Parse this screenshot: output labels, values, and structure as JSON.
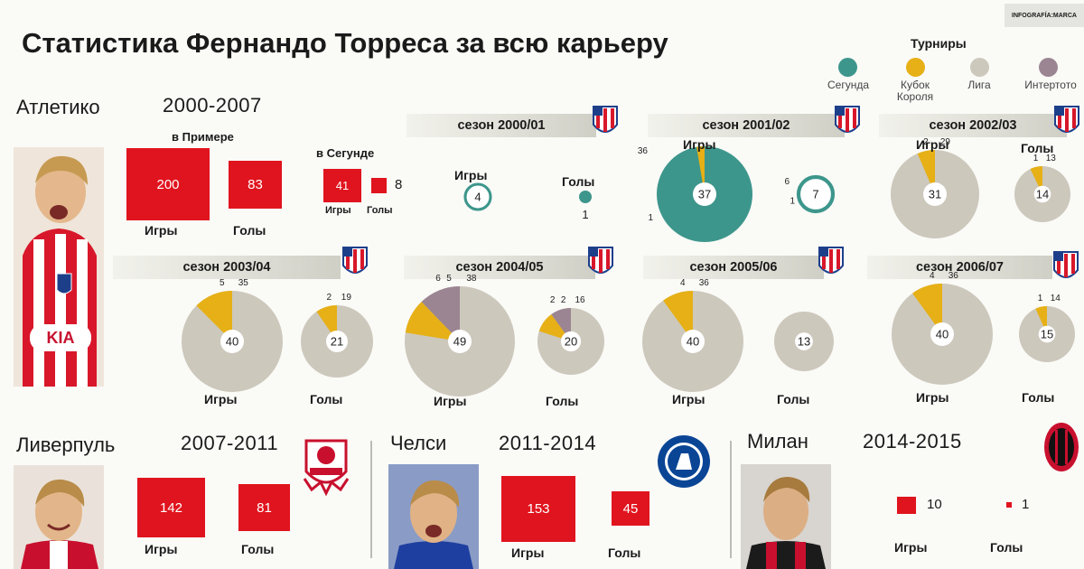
{
  "header": {
    "title": "Статистика Фернандо Торреса за всю карьеру",
    "credit": "INFOGRAFÍA:MARCA"
  },
  "legend": {
    "title": "Турниры",
    "items": [
      {
        "label": "Сегунда",
        "color": "#3d968c"
      },
      {
        "label": "Кубок Короля",
        "color": "#e6b016"
      },
      {
        "label": "Лига",
        "color": "#cdc8bc"
      },
      {
        "label": "Интертото",
        "color": "#9b8592"
      }
    ]
  },
  "atletico": {
    "club": "Атлетико",
    "years": "2000-2007",
    "primera_label": "в Примере",
    "primera_games": "200",
    "primera_goals": "83",
    "segunda_label": "в Сегунде",
    "segunda_games": "41",
    "segunda_goals": "8",
    "games_label": "Игры",
    "goals_label": "Голы"
  },
  "liverpool": {
    "club": "Ливерпуль",
    "years": "2007-2011",
    "games": "142",
    "goals": "81",
    "games_label": "Игры",
    "goals_label": "Голы"
  },
  "chelsea": {
    "club": "Челси",
    "years": "2011-2014",
    "games": "153",
    "goals": "45",
    "games_label": "Игры",
    "goals_label": "Голы"
  },
  "milan": {
    "club": "Милан",
    "years": "2014-2015",
    "games": "10",
    "goals": "1",
    "games_label": "Игры",
    "goals_label": "Голы"
  },
  "chart_data": {
    "type": "pie",
    "colors": {
      "segunda": "#3d968c",
      "copa": "#e6b016",
      "liga": "#cdc8bc",
      "intertoto": "#9b8592"
    },
    "seasons": [
      {
        "label": "сезон 2000/01",
        "games": {
          "total": 4,
          "segunda": 4
        },
        "goals": {
          "total": 1,
          "segunda": 1
        },
        "games_label": "Игры",
        "goals_label": "Голы"
      },
      {
        "label": "сезон 2001/02",
        "games": {
          "total": 37,
          "segunda": 36,
          "copa": 1
        },
        "goals": {
          "total": 7,
          "segunda": 6,
          "copa": 1
        },
        "games_label": "Игры",
        "goals_label": ""
      },
      {
        "label": "сезон 2002/03",
        "games": {
          "total": 31,
          "liga": 29,
          "copa": 2
        },
        "goals": {
          "total": 14,
          "liga": 13,
          "copa": 1
        },
        "games_label": "Игры",
        "goals_label": "Голы"
      },
      {
        "label": "сезон 2003/04",
        "games": {
          "total": 40,
          "liga": 35,
          "copa": 5
        },
        "goals": {
          "total": 21,
          "liga": 19,
          "copa": 2
        },
        "games_label": "Игры",
        "goals_label": "Голы"
      },
      {
        "label": "сезон 2004/05",
        "games": {
          "total": 49,
          "liga": 38,
          "copa": 5,
          "intertoto": 6
        },
        "goals": {
          "total": 20,
          "liga": 16,
          "copa": 2,
          "intertoto": 2
        },
        "games_label": "Игры",
        "goals_label": "Голы"
      },
      {
        "label": "сезон 2005/06",
        "games": {
          "total": 40,
          "liga": 36,
          "copa": 4
        },
        "goals": {
          "total": 13,
          "liga": 13
        },
        "games_label": "Игры",
        "goals_label": "Голы"
      },
      {
        "label": "сезон 2006/07",
        "games": {
          "total": 40,
          "liga": 36,
          "copa": 4
        },
        "goals": {
          "total": 15,
          "liga": 14,
          "copa": 1
        },
        "games_label": "Игры",
        "goals_label": "Голы"
      }
    ]
  }
}
